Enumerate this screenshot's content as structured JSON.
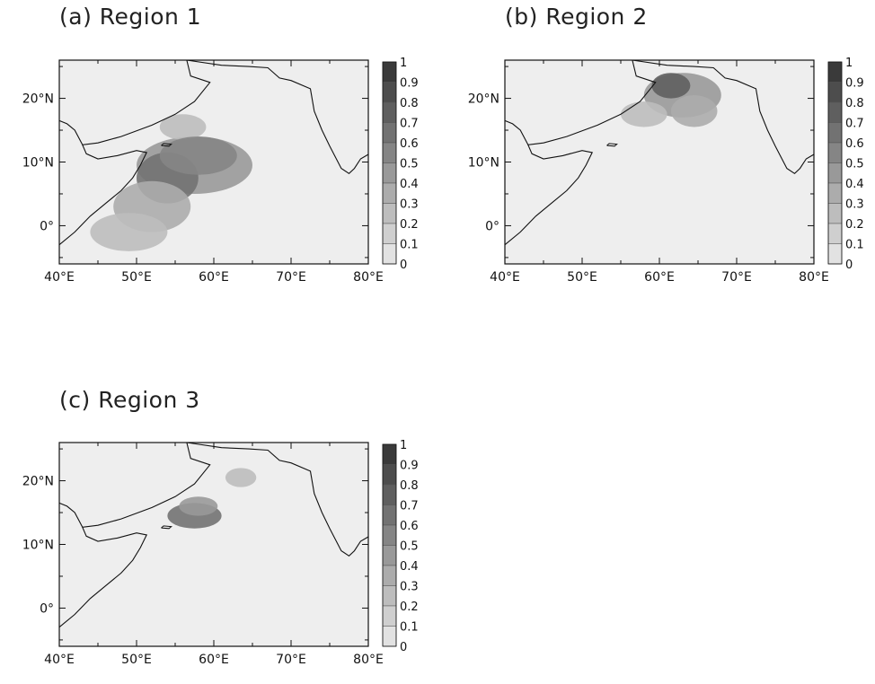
{
  "figure": {
    "panels": [
      {
        "id": "a",
        "title": "(a) Region 1"
      },
      {
        "id": "b",
        "title": "(b) Region 2"
      },
      {
        "id": "c",
        "title": "(c) Region 3"
      }
    ],
    "colorbar": {
      "levels": [
        "1",
        "0.9",
        "0.8",
        "0.7",
        "0.6",
        "0.5",
        "0.4",
        "0.3",
        "0.2",
        "0.1",
        "0"
      ],
      "colors": [
        "#3a3a3a",
        "#4d4d4d",
        "#5f5f5f",
        "#727272",
        "#858585",
        "#999999",
        "#acacac",
        "#bdbdbd",
        "#cfcfcf",
        "#e2e2e2"
      ]
    },
    "axes": {
      "lon_labels": [
        "40°E",
        "50°E",
        "60°E",
        "70°E",
        "80°E"
      ],
      "lon_values": [
        40,
        50,
        60,
        70,
        80
      ],
      "lat_labels": [
        "20°N",
        "10°N",
        "0°"
      ],
      "lat_values": [
        20,
        10,
        0
      ],
      "lon_range": [
        40,
        80
      ],
      "lat_range": [
        -6,
        26
      ]
    },
    "coastline_color": "#111111",
    "background_fill": "#eeeeee"
  }
}
